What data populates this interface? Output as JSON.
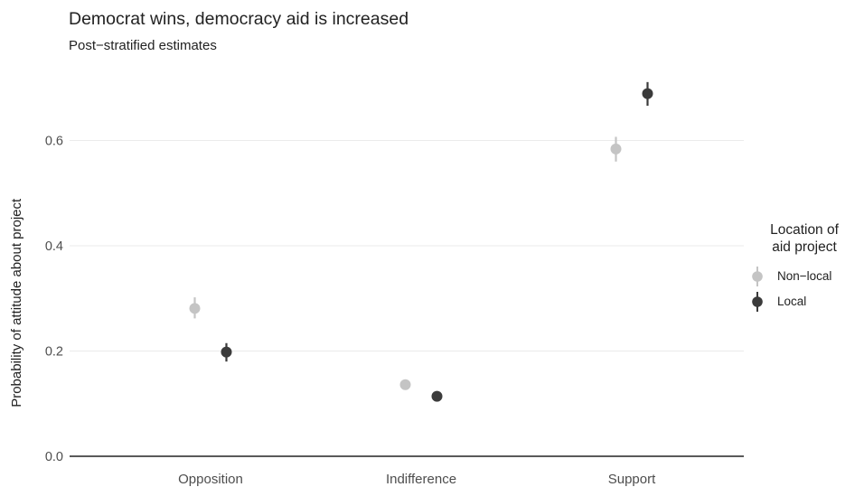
{
  "chart_data": {
    "type": "scatter",
    "title": "Democrat wins, democracy aid is increased",
    "subtitle": "Post−stratified estimates",
    "xlabel": "",
    "ylabel": "Probability of attitude about project",
    "categories": [
      "Opposition",
      "Indifference",
      "Support"
    ],
    "ylim": [
      0,
      0.72
    ],
    "yticks": [
      "0.0",
      "0.2",
      "0.4",
      "0.6"
    ],
    "ytick_values": [
      0,
      0.2,
      0.4,
      0.6
    ],
    "grid": true,
    "legend": {
      "title": "Location of aid project",
      "title_lines": [
        "Location of",
        "aid project"
      ],
      "position": "right"
    },
    "series": [
      {
        "name": "Non−local",
        "color": "#c4c4c4",
        "values": [
          0.281,
          0.136,
          0.584
        ],
        "lower": [
          0.262,
          0.13,
          0.56
        ],
        "upper": [
          0.302,
          0.142,
          0.607
        ]
      },
      {
        "name": "Local",
        "color": "#3b3b3b",
        "values": [
          0.198,
          0.114,
          0.689
        ],
        "lower": [
          0.18,
          0.108,
          0.666
        ],
        "upper": [
          0.215,
          0.121,
          0.711
        ]
      }
    ]
  }
}
